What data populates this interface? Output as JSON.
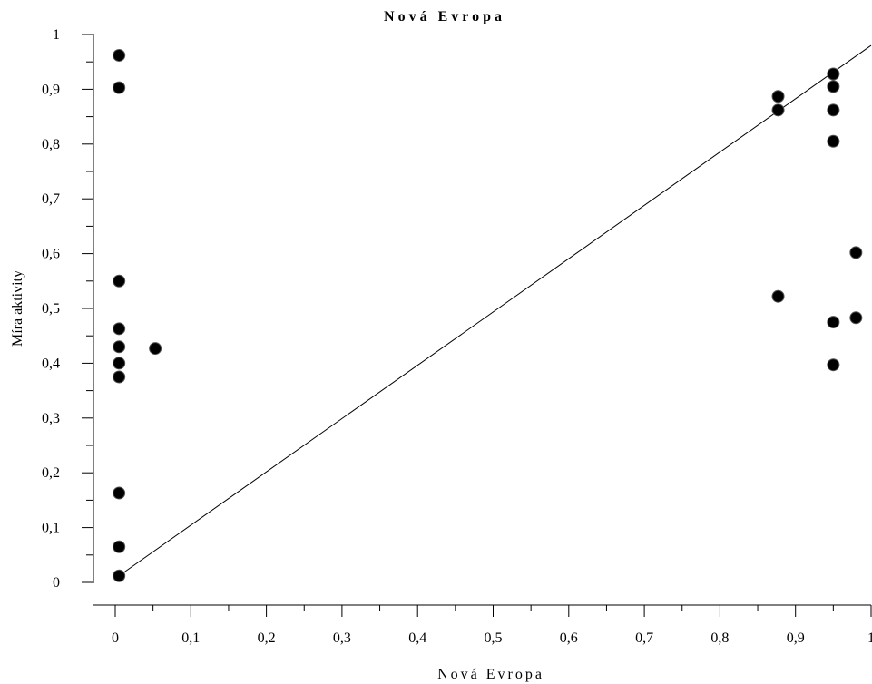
{
  "chart_data": {
    "type": "scatter",
    "title": "Nová Evropa",
    "xlabel": "Nová Evropa",
    "ylabel": "Míra aktivity",
    "xlim": [
      0,
      1
    ],
    "ylim": [
      0,
      1
    ],
    "x_ticks": [
      "0",
      "0,1",
      "0,2",
      "0,3",
      "0,4",
      "0,5",
      "0,6",
      "0,7",
      "0,8",
      "0,9",
      "1"
    ],
    "y_ticks": [
      "0",
      "0,1",
      "0,2",
      "0,3",
      "0,4",
      "0,5",
      "0,6",
      "0,7",
      "0,8",
      "0,9",
      "1"
    ],
    "grid": false,
    "series": [
      {
        "points": [
          [
            0.005,
            0.962
          ],
          [
            0.005,
            0.903
          ],
          [
            0.005,
            0.55
          ],
          [
            0.005,
            0.463
          ],
          [
            0.005,
            0.43
          ],
          [
            0.005,
            0.4
          ],
          [
            0.005,
            0.375
          ],
          [
            0.005,
            0.163
          ],
          [
            0.005,
            0.065
          ],
          [
            0.005,
            0.012
          ],
          [
            0.053,
            0.427
          ],
          [
            0.877,
            0.887
          ],
          [
            0.877,
            0.862
          ],
          [
            0.877,
            0.522
          ],
          [
            0.95,
            0.928
          ],
          [
            0.95,
            0.905
          ],
          [
            0.95,
            0.862
          ],
          [
            0.95,
            0.805
          ],
          [
            0.95,
            0.475
          ],
          [
            0.95,
            0.397
          ],
          [
            0.98,
            0.602
          ],
          [
            0.98,
            0.483
          ]
        ]
      }
    ],
    "trendline": {
      "x": [
        0.005,
        1
      ],
      "y": [
        0.012,
        0.98
      ]
    },
    "marker_color": "#000000",
    "line_color": "#000000"
  }
}
